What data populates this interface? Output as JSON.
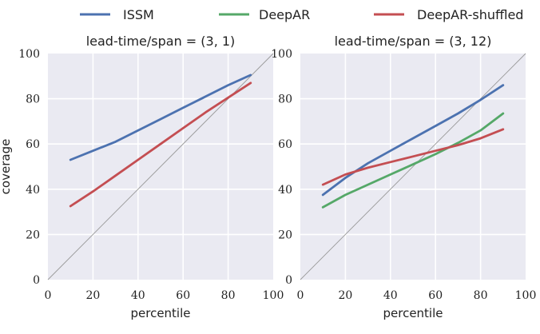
{
  "legend": [
    {
      "name": "ISSM",
      "color": "#4c72b0"
    },
    {
      "name": "DeepAR",
      "color": "#55a868"
    },
    {
      "name": "DeepAR-shuffled",
      "color": "#c44e52"
    }
  ],
  "chart_data": [
    {
      "type": "line",
      "title": "lead-time/span = (3, 1)",
      "xlabel": "percentile",
      "ylabel": "coverage",
      "xlim": [
        0,
        100
      ],
      "ylim": [
        0,
        100
      ],
      "xticks": [
        0,
        20,
        40,
        60,
        80,
        100
      ],
      "yticks": [
        0,
        20,
        40,
        60,
        80,
        100
      ],
      "grid": true,
      "diagonal_reference": true,
      "x": [
        10,
        20,
        30,
        40,
        50,
        60,
        70,
        80,
        90
      ],
      "series": [
        {
          "name": "ISSM",
          "color": "#4c72b0",
          "values": [
            53,
            57,
            61,
            66,
            71,
            76,
            81,
            86,
            90.5
          ]
        },
        {
          "name": "DeepAR-shuffled",
          "color": "#c44e52",
          "values": [
            32.5,
            39,
            46,
            53,
            60,
            67,
            74,
            80.5,
            87
          ]
        }
      ]
    },
    {
      "type": "line",
      "title": "lead-time/span = (3, 12)",
      "xlabel": "percentile",
      "ylabel": "",
      "xlim": [
        0,
        100
      ],
      "ylim": [
        0,
        100
      ],
      "xticks": [
        0,
        20,
        40,
        60,
        80,
        100
      ],
      "yticks": [
        0,
        20,
        40,
        60,
        80,
        100
      ],
      "grid": true,
      "diagonal_reference": true,
      "x": [
        10,
        20,
        30,
        40,
        50,
        60,
        70,
        80,
        90
      ],
      "series": [
        {
          "name": "ISSM",
          "color": "#4c72b0",
          "values": [
            37.5,
            45,
            51.5,
            57,
            62.5,
            68,
            73.5,
            79.5,
            86
          ]
        },
        {
          "name": "DeepAR",
          "color": "#55a868",
          "values": [
            32,
            37.5,
            42,
            46.5,
            51,
            55.5,
            60.5,
            66,
            73.5
          ]
        },
        {
          "name": "DeepAR-shuffled",
          "color": "#c44e52",
          "values": [
            42,
            46.5,
            49.5,
            52,
            54.5,
            57,
            59.5,
            62.5,
            66.5
          ]
        }
      ]
    }
  ]
}
